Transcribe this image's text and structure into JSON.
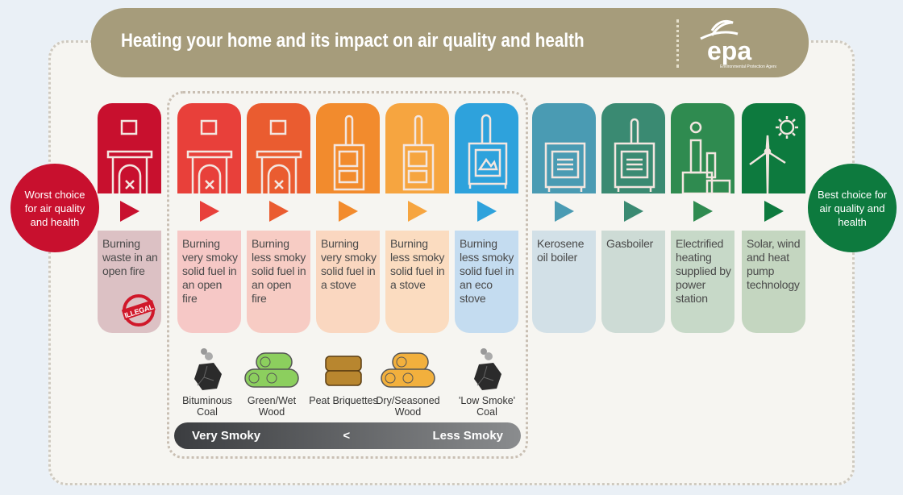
{
  "title": "Heating your home and its impact on air quality and health",
  "logo": {
    "text": "epa",
    "subtitle": "Environmental Protection Agency"
  },
  "worst": "Worst choice for air quality and health",
  "best": "Best choice for air quality and health",
  "columns": [
    {
      "label": "Burning waste in an open fire",
      "icon": "fireplace-waste-icon",
      "color": "#c8102e",
      "tint": "#dcc1c4",
      "badge": "ILLEGAL"
    },
    {
      "label": "Burning very smoky solid fuel in an open fire",
      "icon": "fireplace-icon",
      "color": "#e8403a",
      "tint": "#f6c8c6"
    },
    {
      "label": "Burning less smoky solid fuel in an open fire",
      "icon": "fireplace-icon",
      "color": "#ea5c30",
      "tint": "#f7ccc4"
    },
    {
      "label": "Burning very smoky solid fuel in a stove",
      "icon": "stove-icon",
      "color": "#f28b2d",
      "tint": "#fad7c0"
    },
    {
      "label": "Burning less smoky solid fuel in a stove",
      "icon": "stove-icon",
      "color": "#f6a540",
      "tint": "#fbdcc0"
    },
    {
      "label": "Burning less smoky solid fuel in an eco stove",
      "icon": "eco-stove-icon",
      "color": "#2ea2dc",
      "tint": "#c4dcf0"
    },
    {
      "label": "Kerosene oil boiler",
      "icon": "oil-boiler-icon",
      "color": "#4a9bb3",
      "tint": "#d2e0e7"
    },
    {
      "label": "Gasboiler",
      "icon": "gas-boiler-icon",
      "color": "#3a8a72",
      "tint": "#cddbd5"
    },
    {
      "label": "Electrified heating supplied by power station",
      "icon": "power-station-icon",
      "color": "#2f8b50",
      "tint": "#c7d9c8"
    },
    {
      "label": "Solar, wind and heat pump technology",
      "icon": "wind-solar-icon",
      "color": "#0d7a3e",
      "tint": "#c4d6c0"
    }
  ],
  "fuels": [
    {
      "label": "Bituminous Coal",
      "icon": "coal-icon",
      "color": "#2b2b2b"
    },
    {
      "label": "Green/Wet Wood",
      "icon": "logs-icon",
      "color": "#8ccf5e"
    },
    {
      "label": "Peat Briquettes",
      "icon": "briquettes-icon",
      "color": "#b8862f"
    },
    {
      "label": "Dry/Seasoned Wood",
      "icon": "logs-icon",
      "color": "#f2b03d"
    },
    {
      "label": "'Low Smoke' Coal",
      "icon": "coal-icon",
      "color": "#2b2b2b"
    }
  ],
  "scale": {
    "left": "Very Smoky",
    "middle": "<",
    "right": "Less Smoky"
  }
}
